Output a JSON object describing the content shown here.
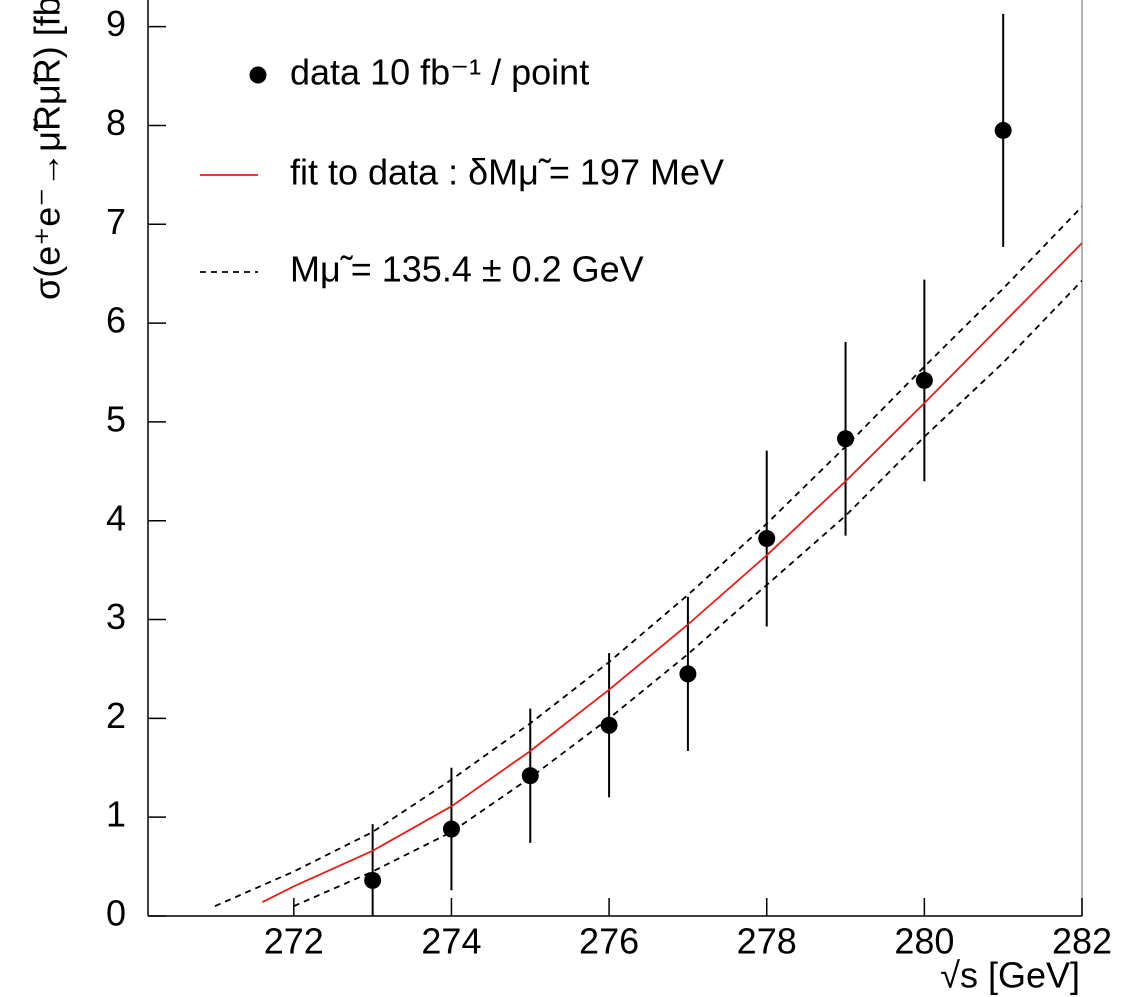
{
  "chart_data": {
    "type": "scatter",
    "x_label": "√s [GeV]",
    "y_label": "σ(e⁺e⁻→μ̃Rμ̃R) [fb]",
    "xlim": [
      270.15,
      282
    ],
    "xticks": [
      272,
      274,
      276,
      278,
      280,
      282
    ],
    "ylim": [
      0,
      9.27
    ],
    "yticks": [
      0,
      1,
      2,
      3,
      4,
      5,
      6,
      7,
      8,
      9
    ],
    "series": [
      {
        "name": "data 10 fb⁻¹ / point",
        "color": "#000000",
        "x": [
          273,
          274,
          275,
          276,
          277,
          278,
          279,
          280,
          281
        ],
        "values": [
          0.36,
          0.88,
          1.42,
          1.93,
          2.45,
          3.82,
          4.83,
          5.42,
          7.95
        ],
        "errors": [
          0.57,
          0.62,
          0.68,
          0.73,
          0.78,
          0.89,
          0.98,
          1.02,
          1.18
        ]
      },
      {
        "name": "fit to data : δMμ̃ = 197 MeV",
        "color": "#e0201b",
        "x": [
          271.6,
          272,
          273,
          274,
          275,
          276,
          277,
          278,
          279,
          280,
          281,
          282
        ],
        "values": [
          0.14,
          0.3,
          0.66,
          1.11,
          1.67,
          2.29,
          2.95,
          3.65,
          4.4,
          5.19,
          6.0,
          6.81
        ]
      },
      {
        "name": "Mμ̃ =  135.4 ± 0.2 GeV",
        "color": "#000000",
        "dashed": true,
        "x": [
          271,
          272,
          273,
          274,
          275,
          276,
          277,
          278,
          279,
          280,
          281,
          282
        ],
        "upper": [
          0.1,
          0.45,
          0.85,
          1.38,
          1.95,
          2.57,
          3.25,
          3.97,
          4.75,
          5.56,
          6.35,
          7.18
        ],
        "lower": [
          null,
          0.1,
          0.45,
          0.85,
          1.4,
          2.0,
          2.65,
          3.35,
          4.05,
          4.85,
          5.6,
          6.43
        ]
      }
    ]
  }
}
